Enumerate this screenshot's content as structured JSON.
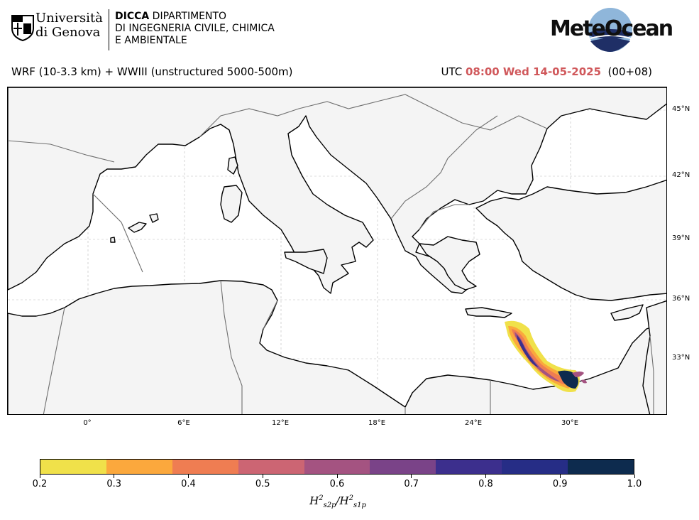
{
  "header": {
    "unige_line1": "Università",
    "unige_line2": "di Genova",
    "dicca_line1_bold": "DICCA",
    "dicca_line1_rest": " DIPARTIMENTO",
    "dicca_line2": "DI INGEGNERIA CIVILE, CHIMICA",
    "dicca_line3": "E AMBIENTALE",
    "meteo_brand": "MeteOcean"
  },
  "subtitle": "WRF (10-3.3 km) + WWIII (unstructured 5000-500m)",
  "time": {
    "prefix": "UTC ",
    "value": "08:00 Wed 14-05-2025",
    "suffix": "  (00+08)",
    "highlight_color": "#d0585b"
  },
  "map": {
    "lat_labels": [
      "45°N",
      "42°N",
      "39°N",
      "36°N",
      "33°N"
    ],
    "lon_labels": [
      "0°",
      "6°E",
      "12°E",
      "18°E",
      "24°E",
      "30°E"
    ],
    "land_color": "#f4f4f4",
    "sea_color": "#ffffff"
  },
  "colorbar": {
    "ticks": [
      "0.2",
      "0.3",
      "0.4",
      "0.5",
      "0.6",
      "0.7",
      "0.8",
      "0.9",
      "1.0"
    ],
    "colors": [
      "#f0e14a",
      "#fba83d",
      "#ef7d52",
      "#cc6573",
      "#a45381",
      "#7a4388",
      "#3c2f8d",
      "#262d86",
      "#0d2b4e"
    ],
    "label_main": "H",
    "label_sub1": "s2p",
    "label_sub2": "s1p",
    "label_sup": "2"
  }
}
